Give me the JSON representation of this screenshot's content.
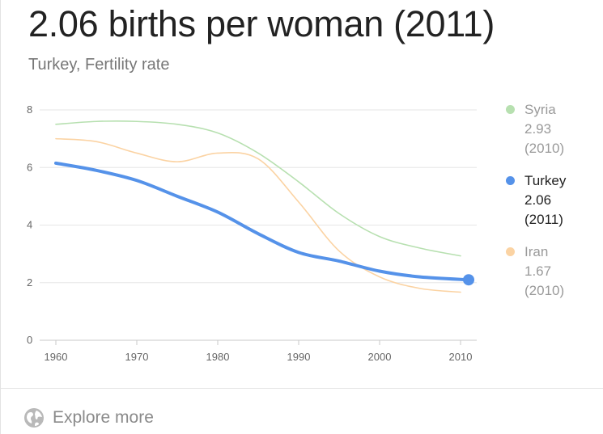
{
  "header": {
    "headline": "2.06 births per woman (2011)",
    "subtitle": "Turkey, Fertility rate"
  },
  "footer": {
    "explore_label": "Explore more"
  },
  "colors": {
    "grid": "#e6e6e6",
    "axis": "#c8c8c8"
  },
  "chart_data": {
    "type": "line",
    "title": "2.06 births per woman (2011)",
    "subtitle": "Turkey, Fertility rate",
    "xlabel": "",
    "ylabel": "",
    "xlim": [
      1960,
      2011
    ],
    "ylim": [
      0,
      8
    ],
    "x_ticks": [
      1960,
      1970,
      1980,
      1990,
      2000,
      2010
    ],
    "y_ticks": [
      0,
      2,
      4,
      6,
      8
    ],
    "grid": true,
    "legend_position": "right",
    "series": [
      {
        "name": "Syria",
        "highlighted": false,
        "color": "#b7e0b0",
        "legend_value": "2.93",
        "legend_year": "(2010)",
        "x": [
          1960,
          1965,
          1970,
          1975,
          1980,
          1985,
          1990,
          1995,
          2000,
          2005,
          2010
        ],
        "y": [
          7.5,
          7.6,
          7.6,
          7.5,
          7.2,
          6.5,
          5.5,
          4.4,
          3.6,
          3.2,
          2.93
        ]
      },
      {
        "name": "Iran",
        "highlighted": false,
        "color": "#fbd3a3",
        "legend_value": "1.67",
        "legend_year": "(2010)",
        "x": [
          1960,
          1965,
          1970,
          1975,
          1980,
          1985,
          1990,
          1995,
          2000,
          2005,
          2010
        ],
        "y": [
          7.0,
          6.9,
          6.5,
          6.2,
          6.5,
          6.3,
          4.8,
          3.1,
          2.2,
          1.8,
          1.67
        ]
      },
      {
        "name": "Turkey",
        "highlighted": true,
        "color": "#5592e9",
        "legend_value": "2.06",
        "legend_year": "(2011)",
        "x": [
          1960,
          1965,
          1970,
          1975,
          1980,
          1985,
          1990,
          1995,
          2000,
          2005,
          2011
        ],
        "y": [
          6.15,
          5.9,
          5.55,
          5.0,
          4.45,
          3.7,
          3.05,
          2.75,
          2.4,
          2.2,
          2.1
        ]
      }
    ]
  }
}
